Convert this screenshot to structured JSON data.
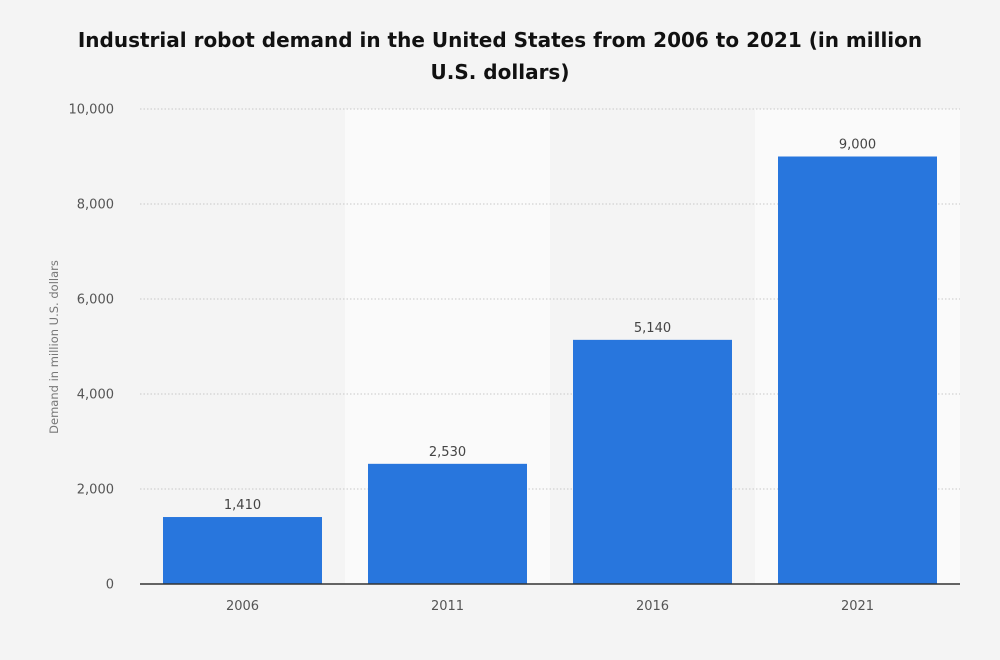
{
  "chart_data": {
    "type": "bar",
    "title": "Industrial robot demand in the United States from 2006 to 2021 (in million U.S. dollars)",
    "xlabel": "",
    "ylabel": "Demand in million U.S. dollars",
    "categories": [
      "2006",
      "2011",
      "2016",
      "2021"
    ],
    "values": [
      1410,
      2530,
      5140,
      9000
    ],
    "data_labels": [
      "1,410",
      "2,530",
      "5,140",
      "9,000"
    ],
    "ylim": [
      0,
      10000
    ],
    "yticks": [
      0,
      2000,
      4000,
      6000,
      8000,
      10000
    ],
    "ytick_labels": [
      "0",
      "2,000",
      "4,000",
      "6,000",
      "8,000",
      "10,000"
    ],
    "grid": true,
    "legend": "none",
    "colors": {
      "bar": "#2876dd",
      "background": "#f4f4f4",
      "band_light": "#fafafa",
      "gridline": "#c8c8c8",
      "axis": "#333333"
    }
  }
}
